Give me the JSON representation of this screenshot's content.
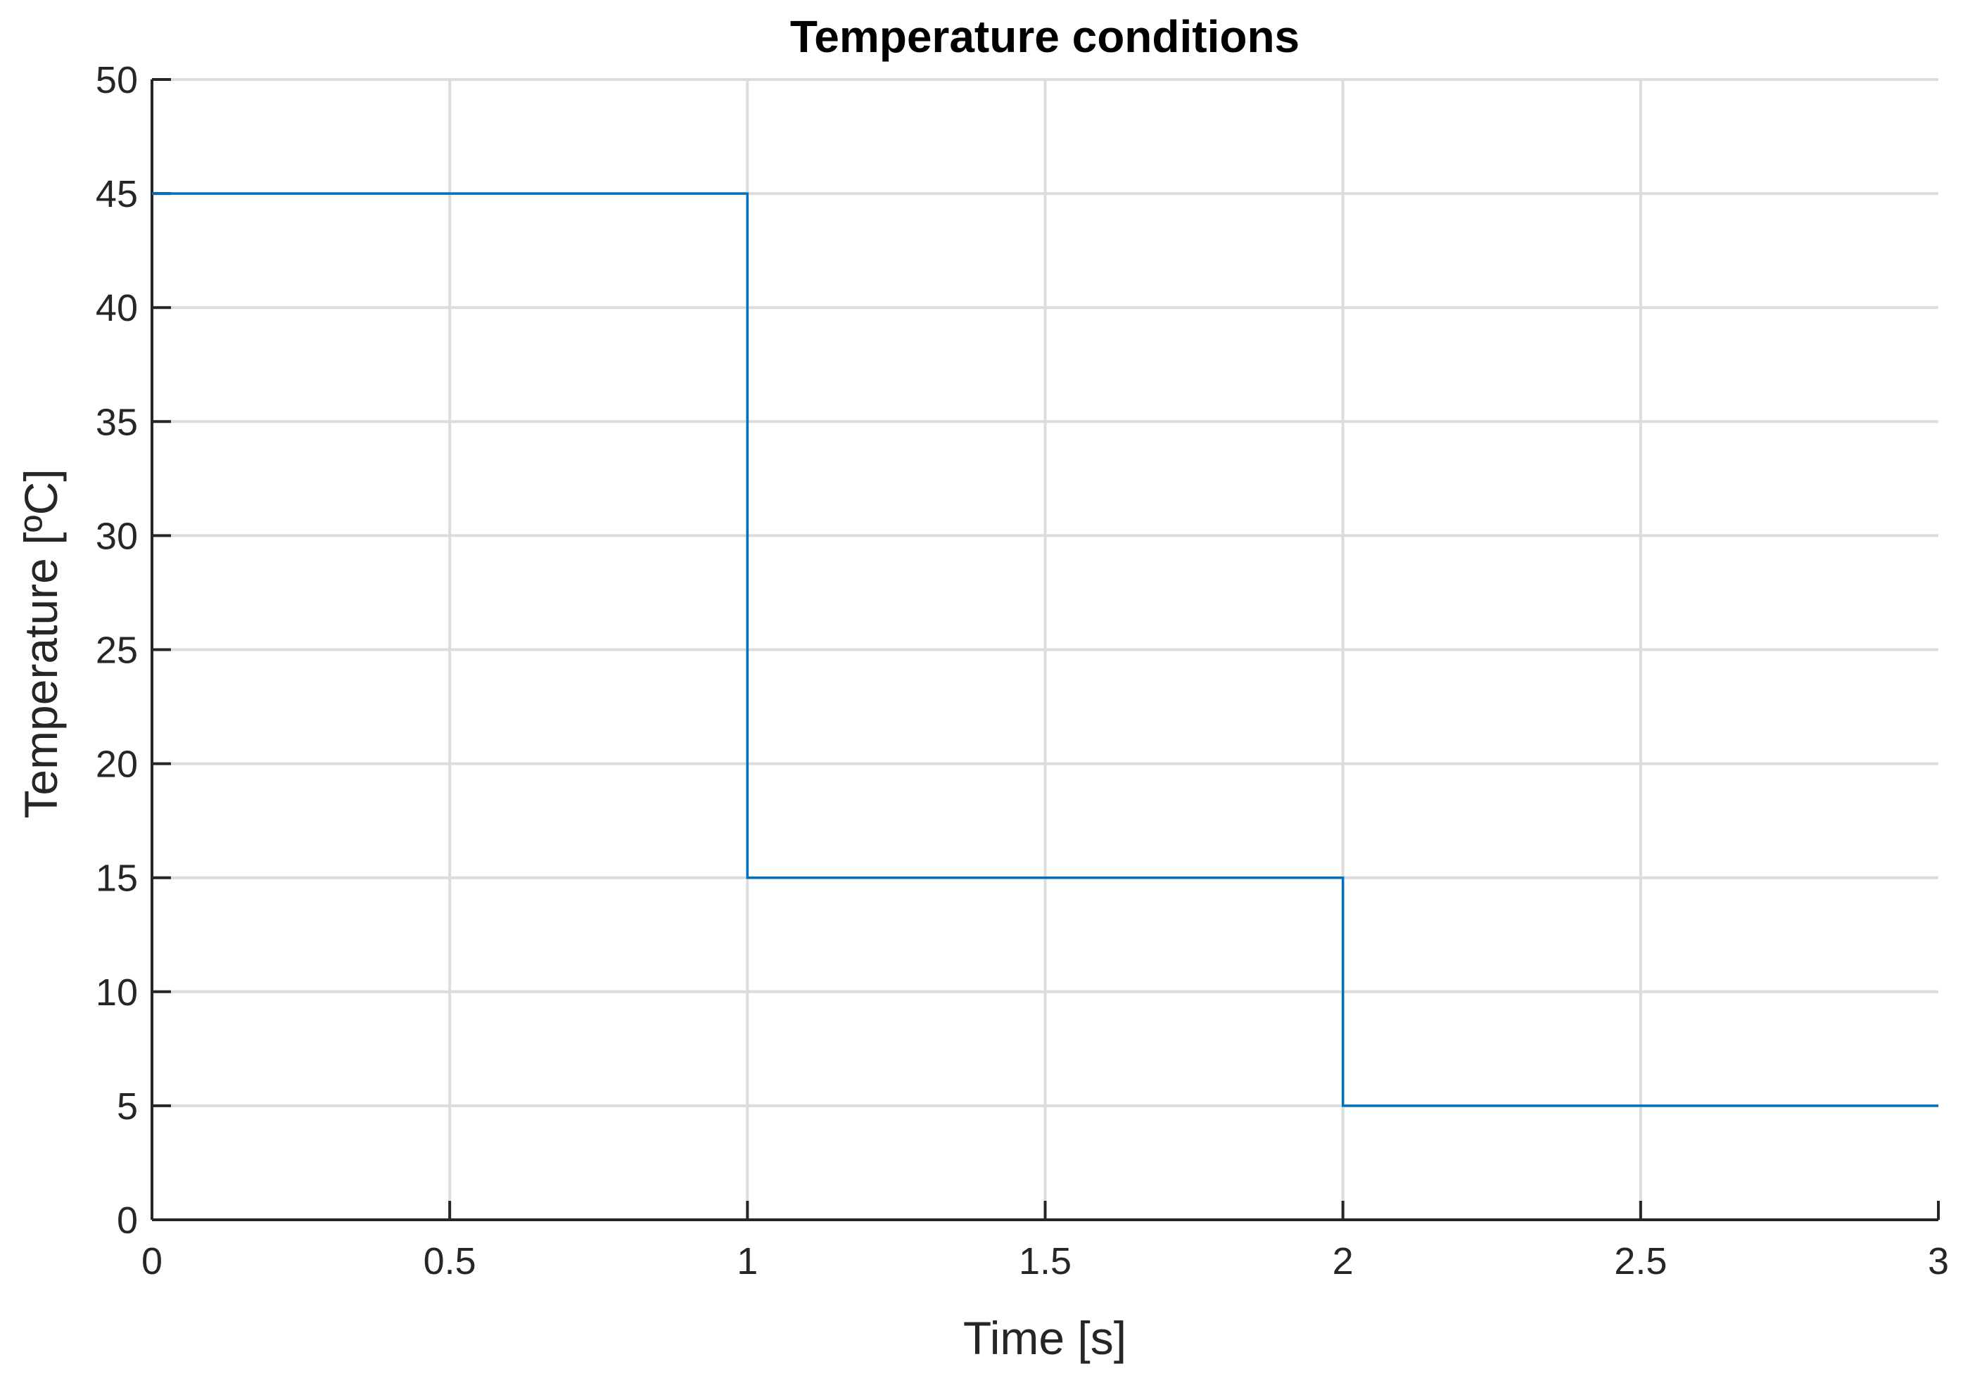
{
  "chart_data": {
    "type": "line",
    "step": true,
    "title": "Temperature conditions",
    "xlabel": "Time [s]",
    "ylabel": "Temperature [ºC]",
    "xlim": [
      0,
      3
    ],
    "ylim": [
      0,
      50
    ],
    "xticks": [
      0,
      0.5,
      1,
      1.5,
      2,
      2.5,
      3
    ],
    "xtick_labels": [
      "0",
      "0.5",
      "1",
      "1.5",
      "2",
      "2.5",
      "3"
    ],
    "yticks": [
      0,
      5,
      10,
      15,
      20,
      25,
      30,
      35,
      40,
      45,
      50
    ],
    "ytick_labels": [
      "0",
      "5",
      "10",
      "15",
      "20",
      "25",
      "30",
      "35",
      "40",
      "45",
      "50"
    ],
    "grid": true,
    "box": "left-bottom axes",
    "series": [
      {
        "color": "#0072BD",
        "x": [
          0,
          1,
          1,
          2,
          2,
          3
        ],
        "y": [
          45,
          45,
          15,
          15,
          5,
          5
        ]
      }
    ]
  }
}
